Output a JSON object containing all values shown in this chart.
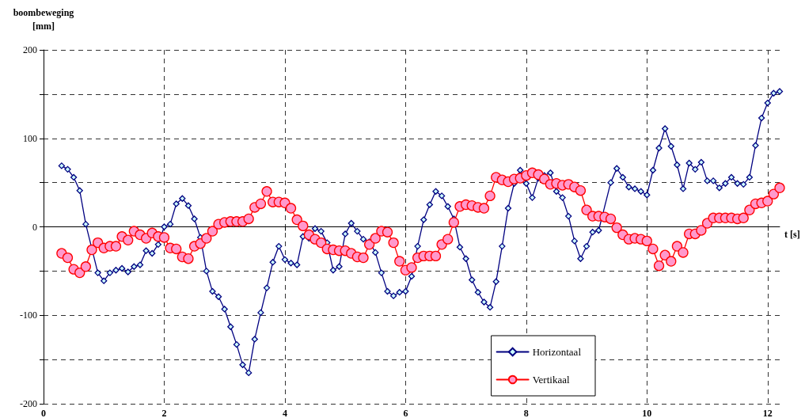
{
  "chart_data": {
    "type": "line",
    "xlabel": "t [s]",
    "ylabel": "boombeweging\n[mm]",
    "x": [
      0.3,
      0.4,
      0.5,
      0.6,
      0.7,
      0.8,
      0.9,
      1.0,
      1.1,
      1.2,
      1.3,
      1.4,
      1.5,
      1.6,
      1.7,
      1.8,
      1.9,
      2.0,
      2.1,
      2.2,
      2.3,
      2.4,
      2.5,
      2.6,
      2.7,
      2.8,
      2.9,
      3.0,
      3.1,
      3.2,
      3.3,
      3.4,
      3.5,
      3.6,
      3.7,
      3.8,
      3.9,
      4.0,
      4.1,
      4.2,
      4.3,
      4.4,
      4.5,
      4.6,
      4.7,
      4.8,
      4.9,
      5.0,
      5.1,
      5.2,
      5.3,
      5.4,
      5.5,
      5.6,
      5.7,
      5.8,
      5.9,
      6.0,
      6.1,
      6.2,
      6.3,
      6.4,
      6.5,
      6.6,
      6.7,
      6.8,
      6.9,
      7.0,
      7.1,
      7.2,
      7.3,
      7.4,
      7.5,
      7.6,
      7.7,
      7.8,
      7.9,
      8.0,
      8.1,
      8.2,
      8.3,
      8.4,
      8.5,
      8.6,
      8.7,
      8.8,
      8.9,
      9.0,
      9.1,
      9.2,
      9.3,
      9.4,
      9.5,
      9.6,
      9.7,
      9.8,
      9.9,
      10.0,
      10.1,
      10.2,
      10.3,
      10.4,
      10.5,
      10.6,
      10.7,
      10.8,
      10.9,
      11.0,
      11.1,
      11.2,
      11.3,
      11.4,
      11.5,
      11.6,
      11.7,
      11.8,
      11.9,
      12.0,
      12.1,
      12.2
    ],
    "series": [
      {
        "name": "Horizontaal",
        "color": "#000080",
        "marker": "diamond",
        "values": [
          69,
          65,
          56,
          41,
          3,
          null,
          -52,
          -61,
          -52,
          -49,
          -47,
          -51,
          -45,
          -43,
          -27,
          -30,
          -20,
          0,
          3,
          26,
          32,
          24,
          9,
          -12,
          -50,
          -73,
          -79,
          -93,
          -113,
          -133,
          -156,
          -165,
          -127,
          -97,
          -69,
          -40,
          -22,
          -37,
          -41,
          -43,
          -11,
          -13,
          -2,
          -5,
          -18,
          -49,
          -45,
          -8,
          4,
          -5,
          -14,
          -17,
          -29,
          -52,
          -73,
          -78,
          -74,
          -73,
          -56,
          -22,
          8,
          25,
          40,
          35,
          23,
          9,
          -23,
          -36,
          -60,
          -74,
          -85,
          -91,
          -62,
          -22,
          21,
          49,
          64,
          49,
          33,
          55,
          58,
          61,
          40,
          33,
          12,
          -16,
          -36,
          -22,
          -6,
          -4,
          null,
          50,
          66,
          56,
          45,
          43,
          40,
          36,
          64,
          89,
          111,
          91,
          70,
          43,
          72,
          65,
          73,
          52,
          52,
          44,
          49,
          56,
          49,
          48,
          56,
          92,
          123,
          140,
          151,
          153
        ]
      },
      {
        "name": "Vertikaal",
        "color": "#ff0000",
        "marker": "circle",
        "values": [
          -30,
          -35,
          -48,
          -52,
          -45,
          -26,
          -18,
          -24,
          -22,
          -22,
          -11,
          -15,
          -5,
          -9,
          -13,
          -7,
          -11,
          -12,
          -24,
          -25,
          -34,
          -36,
          -22,
          -19,
          -13,
          -5,
          3,
          5,
          6,
          6,
          6,
          9,
          22,
          26,
          40,
          28,
          28,
          27,
          21,
          8,
          1,
          -9,
          -14,
          -18,
          -25,
          -26,
          -27,
          -27,
          -30,
          -34,
          -35,
          -20,
          -13,
          -5,
          -6,
          -18,
          -39,
          -49,
          -46,
          -35,
          -33,
          -33,
          -33,
          -20,
          -14,
          5,
          23,
          25,
          24,
          22,
          21,
          35,
          56,
          53,
          51,
          54,
          55,
          58,
          61,
          59,
          54,
          48,
          49,
          47,
          48,
          45,
          41,
          19,
          12,
          12,
          11,
          9,
          -1,
          -9,
          -14,
          -13,
          -14,
          -16,
          -25,
          -44,
          -32,
          -39,
          -22,
          -29,
          -8,
          -8,
          -4,
          4,
          10,
          10,
          10,
          10,
          9,
          10,
          19,
          26,
          27,
          29,
          37,
          44
        ]
      }
    ],
    "xlim": [
      0,
      12.2
    ],
    "xticks": [
      0,
      2,
      4,
      6,
      8,
      10,
      12
    ],
    "ylim": [
      -200,
      200
    ],
    "yticks": [
      -200,
      {
        "value": -150,
        "label": null
      },
      -100,
      {
        "value": -50,
        "label": null
      },
      0,
      {
        "value": 50,
        "label": null
      },
      100,
      {
        "value": 150,
        "label": null
      },
      200
    ],
    "grid": true,
    "legend": "bottom right",
    "line_style": "solid"
  }
}
